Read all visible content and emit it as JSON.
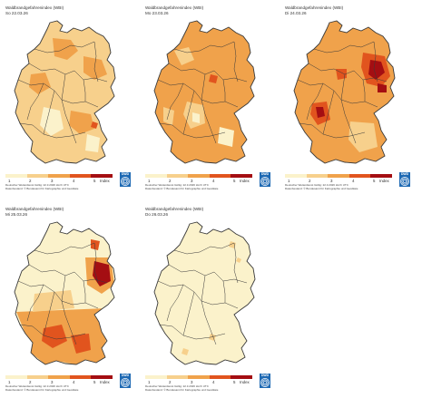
{
  "colors": {
    "level1": "#fbf2cb",
    "level2": "#f7d08c",
    "level3": "#f0a24b",
    "level4": "#e1541e",
    "level5": "#a40e12",
    "border": "#3a3a3a",
    "logo": "#1f6ab4"
  },
  "legend": {
    "ticks": [
      "1",
      "2",
      "3",
      "4",
      "5"
    ],
    "unit": "Index"
  },
  "footer": {
    "line1": "Deutscher Wetterdienst  Gültig: 22.3.2026  Hs=h UTC",
    "line2": "Datenbestand: © Bundesamt für Kartographie und Geodäsie"
  },
  "logo_text": "DWD",
  "panels": [
    {
      "title": "Waldbrandgefahrenindex (WBI)",
      "date": "So 22.03.26",
      "base": "#f7d08c"
    },
    {
      "title": "Waldbrandgefahrenindex (WBI)",
      "date": "Mo 23.03.26",
      "base": "#f0a24b"
    },
    {
      "title": "Waldbrandgefahrenindex (WBI)",
      "date": "Di 24.03.26",
      "base": "#f0a24b"
    },
    {
      "title": "Waldbrandgefahrenindex (WBI)",
      "date": "Mi 25.03.26",
      "base": "#fbf2cb"
    },
    {
      "title": "Waldbrandgefahrenindex (WBI)",
      "date": "Do 26.03.26",
      "base": "#fbf2cb"
    }
  ]
}
